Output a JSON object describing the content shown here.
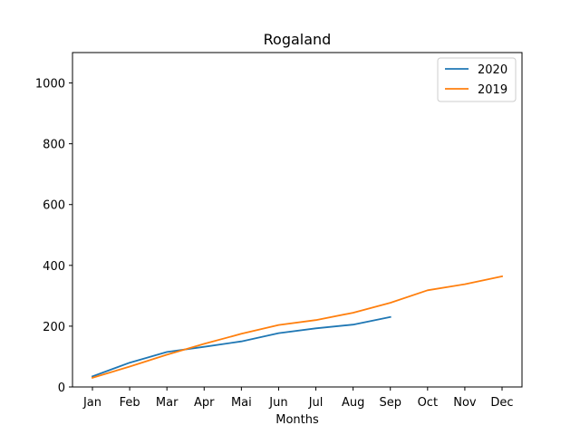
{
  "chart_data": {
    "type": "line",
    "title": "Rogaland",
    "xlabel": "Months",
    "ylabel": "",
    "categories": [
      "Jan",
      "Feb",
      "Mar",
      "Apr",
      "Mai",
      "Jun",
      "Jul",
      "Aug",
      "Sep",
      "Oct",
      "Nov",
      "Dec"
    ],
    "ylim": [
      0,
      1100
    ],
    "yticks": [
      0,
      200,
      400,
      600,
      800,
      1000
    ],
    "grid": false,
    "legend_position": "top-right",
    "series": [
      {
        "name": "2020",
        "color": "#1f77b4",
        "values": [
          35,
          80,
          115,
          132,
          150,
          177,
          193,
          205,
          230,
          null,
          null,
          null
        ]
      },
      {
        "name": "2019",
        "color": "#ff7f0e",
        "values": [
          30,
          67,
          106,
          142,
          175,
          204,
          220,
          244,
          277,
          318,
          338,
          364
        ]
      }
    ]
  }
}
